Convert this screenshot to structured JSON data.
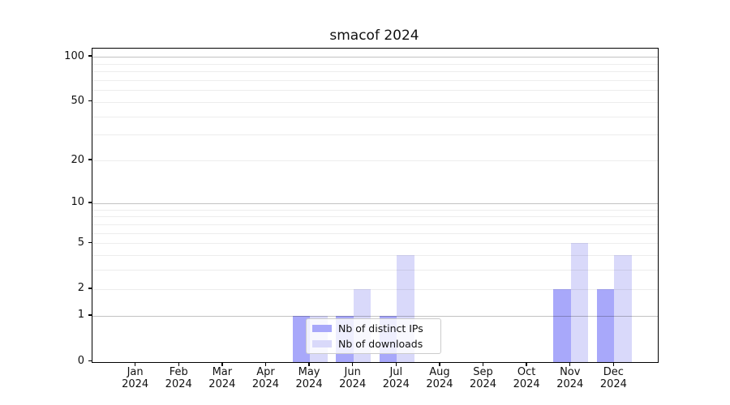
{
  "chart_data": {
    "type": "bar",
    "title": "smacof 2024",
    "categories": [
      "Jan",
      "Feb",
      "Mar",
      "Apr",
      "May",
      "Jun",
      "Jul",
      "Aug",
      "Sep",
      "Oct",
      "Nov",
      "Dec"
    ],
    "year_label": "2024",
    "series": [
      {
        "name": "Nb of distinct IPs",
        "color": "#a8a8fa",
        "values": [
          0,
          0,
          0,
          0,
          1,
          1,
          1,
          0,
          0,
          0,
          2,
          2
        ]
      },
      {
        "name": "Nb of downloads",
        "color": "#d9d9fa",
        "values": [
          0,
          0,
          0,
          0,
          1,
          2,
          4,
          0,
          0,
          0,
          5,
          4
        ]
      }
    ],
    "xlabel": "",
    "ylabel": "",
    "yscale": "log1p",
    "ylim": [
      0,
      113
    ],
    "ytick_values": [
      0,
      1,
      2,
      5,
      10,
      20,
      50,
      100
    ],
    "grid_major_values": [
      1,
      10,
      100
    ],
    "grid_minor_values": [
      2,
      3,
      4,
      5,
      6,
      7,
      8,
      9,
      20,
      30,
      40,
      50,
      60,
      70,
      80,
      90
    ],
    "grid": "on",
    "legend_position": "lower-center-overlapping-plot"
  }
}
